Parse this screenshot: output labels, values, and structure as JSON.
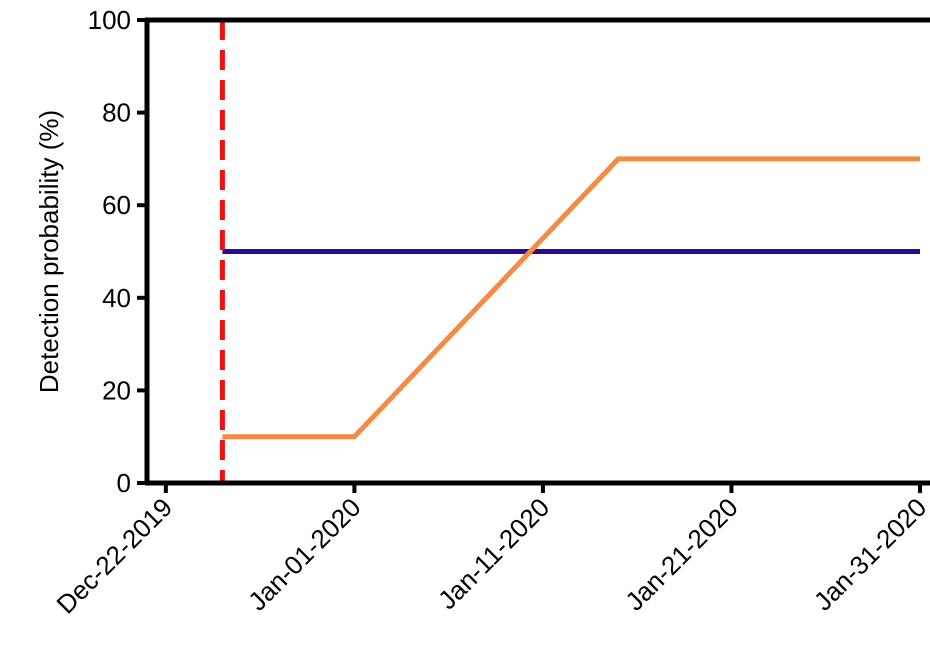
{
  "chart_data": {
    "type": "line",
    "title": "",
    "xlabel": "",
    "ylabel": "Detection probability (%)",
    "x_axis_type": "date",
    "xlim": [
      "2019-12-21",
      "2020-01-31"
    ],
    "ylim": [
      0,
      100
    ],
    "x_ticks": [
      {
        "date": "2019-12-22",
        "label": "Dec-22-2019"
      },
      {
        "date": "2020-01-01",
        "label": "Jan-01-2020"
      },
      {
        "date": "2020-01-11",
        "label": "Jan-11-2020"
      },
      {
        "date": "2020-01-21",
        "label": "Jan-21-2020"
      },
      {
        "date": "2020-01-31",
        "label": "Jan-31-2020"
      }
    ],
    "y_ticks": [
      "0",
      "20",
      "40",
      "60",
      "80",
      "100"
    ],
    "grid": false,
    "legend": "none",
    "series": [
      {
        "color": "#2b0a9a",
        "style": "solid",
        "x": [
          "2019-12-25",
          "2020-01-31"
        ],
        "y": [
          50,
          50
        ]
      },
      {
        "color": "#f58a42",
        "style": "solid",
        "x": [
          "2019-12-25",
          "2020-01-01",
          "2020-01-15",
          "2020-01-31"
        ],
        "y": [
          10,
          10,
          70,
          70
        ]
      }
    ],
    "vlines": [
      {
        "date": "2019-12-25",
        "color": "#ee1111",
        "style": "dashed"
      }
    ]
  }
}
